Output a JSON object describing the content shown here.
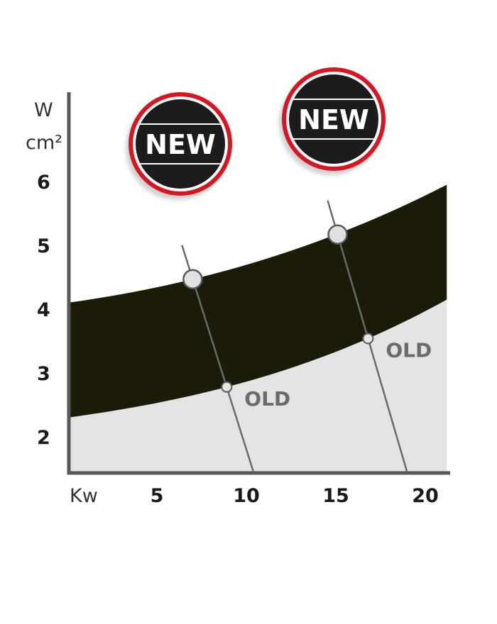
{
  "chart_data": {
    "type": "area",
    "title": "",
    "ylabel_line1": "W",
    "ylabel_line2": "cm²",
    "xlabel": "Kw",
    "ylim": [
      1.45,
      7.4
    ],
    "xlim": [
      0,
      21.2
    ],
    "y_ticks": [
      "2",
      "3",
      "4",
      "5",
      "6"
    ],
    "x_ticks": [
      "5",
      "10",
      "15",
      "20"
    ],
    "grid": false,
    "series": [
      {
        "name": "NEW",
        "role": "band-upper",
        "x": [
          0,
          7,
          15,
          21.2
        ],
        "y": [
          4.1,
          4.47,
          5.17,
          5.95
        ]
      },
      {
        "name": "OLD",
        "role": "band-lower",
        "x": [
          0,
          8.9,
          16.8,
          21.2
        ],
        "y": [
          2.3,
          2.78,
          3.54,
          4.15
        ]
      }
    ],
    "comparisons": [
      {
        "new_point": {
          "x": 7.0,
          "y": 4.47
        },
        "old_point": {
          "x": 8.9,
          "y": 2.78
        },
        "old_label": "OLD",
        "badge_label": "NEW"
      },
      {
        "new_point": {
          "x": 15.1,
          "y": 5.17
        },
        "old_point": {
          "x": 16.8,
          "y": 3.54
        },
        "old_label": "OLD",
        "badge_label": "NEW"
      }
    ],
    "colors": {
      "band": "#1b1b08",
      "below": "#e3e4e6",
      "axis": "#585858",
      "line": "#6a6a6a",
      "badge_ring": "#d71920",
      "badge_fill": "#1e1e1e",
      "old_text": "#6b6b6b"
    }
  }
}
